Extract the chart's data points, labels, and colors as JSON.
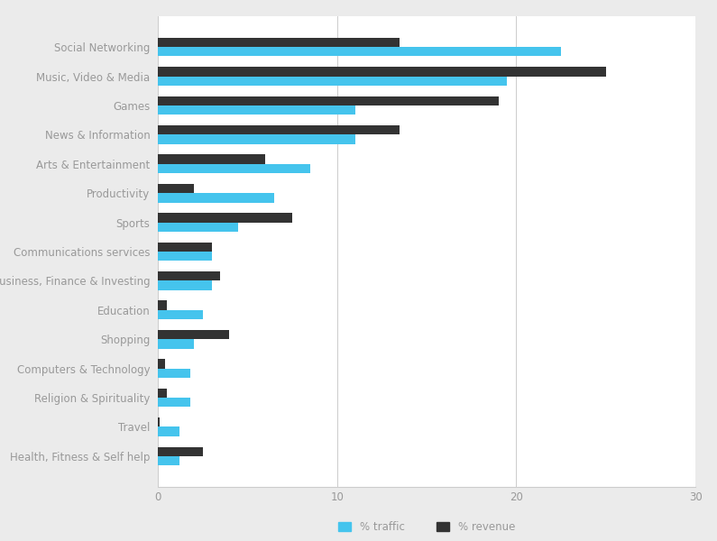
{
  "categories": [
    "Social Networking",
    "Music, Video & Media",
    "Games",
    "News & Information",
    "Arts & Entertainment",
    "Productivity",
    "Sports",
    "Communications services",
    "Business, Finance & Investing",
    "Education",
    "Shopping",
    "Computers & Technology",
    "Religion & Spirituality",
    "Travel",
    "Health, Fitness & Self help"
  ],
  "traffic": [
    22.5,
    19.5,
    11.0,
    11.0,
    8.5,
    6.5,
    4.5,
    3.0,
    3.0,
    2.5,
    2.0,
    1.8,
    1.8,
    1.2,
    1.2
  ],
  "revenue": [
    13.5,
    25.0,
    19.0,
    13.5,
    6.0,
    2.0,
    7.5,
    3.0,
    3.5,
    0.5,
    4.0,
    0.4,
    0.5,
    0.1,
    2.5
  ],
  "traffic_color": "#45C4ED",
  "revenue_color": "#333333",
  "background_color": "#EBEBEB",
  "plot_background": "#FFFFFF",
  "grid_color": "#CCCCCC",
  "label_color": "#999999",
  "border_color": "#CCCCCC",
  "xlim": [
    0,
    30
  ],
  "xticks": [
    0,
    10,
    20,
    30
  ],
  "bar_height": 0.32,
  "figsize": [
    7.95,
    6.0
  ],
  "dpi": 100,
  "legend_labels": [
    "% traffic",
    "% revenue"
  ],
  "tick_fontsize": 8.5,
  "label_fontsize": 8.5
}
